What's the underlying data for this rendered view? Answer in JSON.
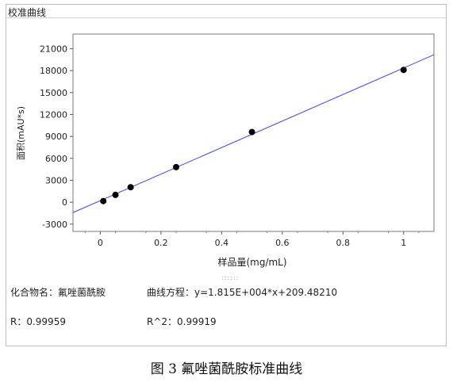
{
  "panel": {
    "title": "校准曲线"
  },
  "chart_data": {
    "type": "scatter",
    "ylabel": "面积(mAU*s)",
    "xlabel": "样品量(mg/mL)",
    "xlim": [
      -0.09,
      1.1
    ],
    "ylim": [
      -4000,
      23000
    ],
    "x_ticks": [
      "0",
      "0.2",
      "0.4",
      "0.6",
      "0.8",
      "1"
    ],
    "x_tick_values": [
      0,
      0.2,
      0.4,
      0.6,
      0.8,
      1
    ],
    "y_ticks": [
      "21000",
      "18000",
      "15000",
      "12000",
      "9000",
      "6000",
      "3000",
      "0",
      "-3000"
    ],
    "y_tick_values": [
      21000,
      18000,
      15000,
      12000,
      9000,
      6000,
      3000,
      0,
      -3000
    ],
    "points": [
      {
        "x": 0.01,
        "y": 150
      },
      {
        "x": 0.05,
        "y": 1000
      },
      {
        "x": 0.1,
        "y": 2050
      },
      {
        "x": 0.25,
        "y": 4800
      },
      {
        "x": 0.5,
        "y": 9600
      },
      {
        "x": 1.0,
        "y": 18100
      }
    ],
    "fit": {
      "slope": 18150,
      "intercept": 209.4821
    },
    "grid": false,
    "point_color": "#000000",
    "line_color": "#4040ff"
  },
  "info": {
    "compound": "化合物名：氟唑菌酰胺",
    "equation": "曲线方程：y=1.815E+004*x+209.48210",
    "r": "R：0.99959",
    "r2": "R^2：0.99919"
  },
  "caption": "图 3  氟唑菌酰胺标准曲线"
}
